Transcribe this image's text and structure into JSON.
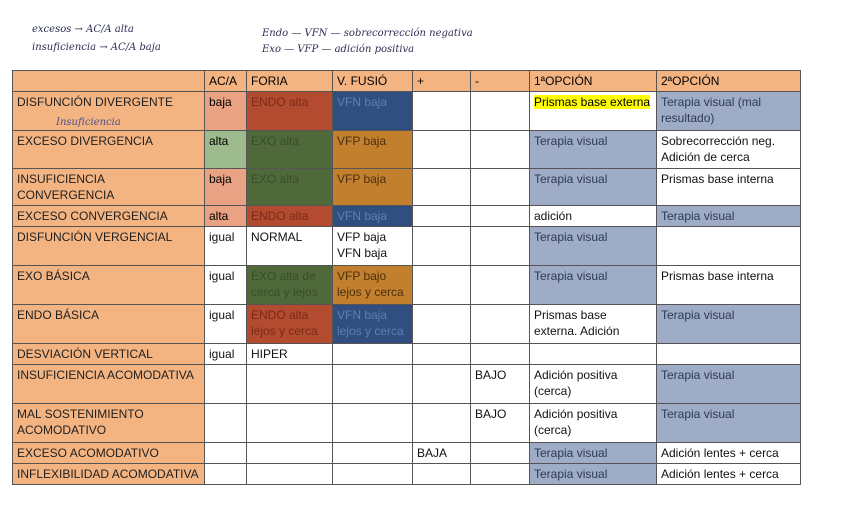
{
  "notes": [
    "excesos → AC/A alta",
    "insuficiencia → AC/A baja",
    "Endo — VFN — sobrecorrección negativa",
    "Exo — VFP — adición positiva"
  ],
  "table": {
    "header": [
      null,
      "AC/A",
      "FORIA",
      "V. FUSIÓ",
      "+",
      "-",
      "1ªOPCIÓN",
      "2ªOPCIÓN"
    ],
    "annotation": "Insuficiencia",
    "rows": [
      [
        "DISFUNCIÓN DIVERGENTE",
        "baja",
        "ENDO alta",
        "VFN baja",
        null,
        null,
        "Prismas base externa",
        "Terapia visual (mal resultado)"
      ],
      [
        "EXCESO DIVERGENCIA",
        "alta",
        "EXO alta",
        "VFP baja",
        null,
        null,
        "Terapia visual",
        "Sobrecorrección neg. Adición de cerca"
      ],
      [
        "INSUFICIENCIA CONVERGENCIA",
        "baja",
        "EXO alta",
        "VFP baja",
        null,
        null,
        "Terapia visual",
        "Prismas base interna"
      ],
      [
        "EXCESO CONVERGENCIA",
        "alta",
        "ENDO alta",
        "VFN baja",
        null,
        null,
        "adición",
        "Terapia visual"
      ],
      [
        "DISFUNCIÓN VERGENCIAL",
        "igual",
        "NORMAL",
        "VFP baja\nVFN baja",
        null,
        null,
        "Terapia visual",
        null
      ],
      [
        "EXO BÁSICA",
        "igual",
        "EXO alta de cerca y lejos",
        "VFP bajo lejos y cerca",
        null,
        null,
        "Terapia visual",
        "Prismas base interna"
      ],
      [
        "ENDO BÁSICA",
        "igual",
        "ENDO alta lejos y cerca",
        "VFN baja lejos y cerca",
        null,
        null,
        "Prismas base externa. Adición",
        "Terapia visual"
      ],
      [
        "DESVIACIÓN VERTICAL",
        "igual",
        "HIPER",
        null,
        null,
        null,
        null,
        null
      ],
      [
        "INSUFICIENCIA ACOMODATIVA",
        null,
        null,
        null,
        null,
        "BAJO",
        "Adición positiva (cerca)",
        "Terapia visual"
      ],
      [
        "MAL SOSTENIMIENTO ACOMODATIVO",
        null,
        null,
        null,
        null,
        "BAJO",
        "Adición positiva (cerca)",
        "Terapia visual"
      ],
      [
        "EXCESO ACOMODATIVO",
        null,
        null,
        null,
        "BAJA",
        null,
        "Terapia visual",
        "Adición lentes + cerca"
      ],
      [
        "INFLEXIBILIDAD ACOMODATIVA",
        null,
        null,
        null,
        null,
        null,
        "Terapia visual",
        "Adición lentes + cerca"
      ]
    ]
  }
}
